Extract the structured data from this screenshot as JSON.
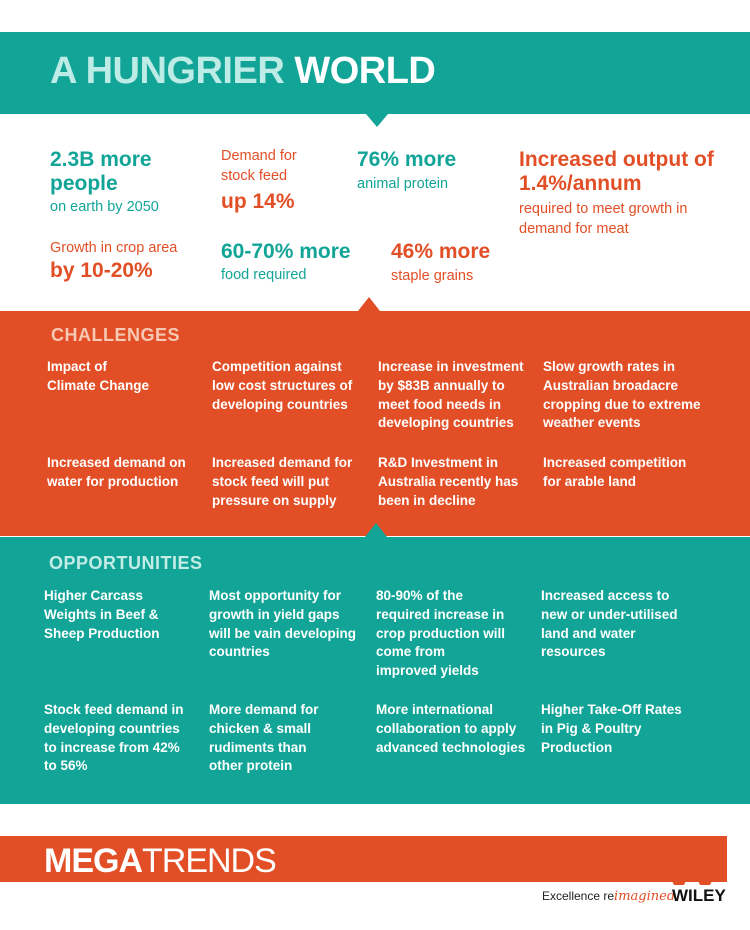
{
  "header": {
    "title_part1": "A HUNGRIER",
    "title_part2": "WORLD"
  },
  "stats": {
    "people_big": "2.3B more people",
    "people_small": "on earth by 2050",
    "stock_small": "Demand for stock feed",
    "stock_big": "up 14%",
    "protein_big": "76% more",
    "protein_small": "animal protein",
    "output_big": "Increased output of 1.4%/annum",
    "output_small": "required to meet growth in demand for meat",
    "crop_small": "Growth in crop area",
    "crop_big": "by 10-20%",
    "food_big": "60-70% more",
    "food_small": "food required",
    "grains_big": "46% more",
    "grains_small": "staple grains"
  },
  "challenges": {
    "title": "CHALLENGES",
    "items": [
      "Impact of Climate Change",
      "Competition against low cost structures of developing countries",
      "Increase in investment by $83B annually to meet food needs in developing countries",
      "Slow growth rates in Australian broadacre cropping due to extreme weather events",
      "Increased demand on water for production",
      "Increased demand for stock feed will put pressure on supply",
      "R&D Investment in Australia recently has been in decline",
      "Increased competition for arable land"
    ]
  },
  "opportunities": {
    "title": "OPPORTUNITIES",
    "items": [
      "Higher Carcass Weights in Beef & Sheep Production",
      "Most opportunity for growth in yield gaps will be vain developing countries",
      "80-90% of the required increase in crop production will come from improved yields",
      "Increased access to new or under-utilised land and water resources",
      "Stock feed demand in developing countries to increase from 42% to 56%",
      "More demand for chicken & small rudiments than other protein",
      "More international collaboration to apply advanced technologies",
      "Higher Take-Off Rates in Pig & Poultry Production"
    ]
  },
  "footer": {
    "mega_bold": "MEGA",
    "mega_light": "TRENDS",
    "excellence": "Excellence re",
    "imagined": "imagined",
    "brand": "WILEY"
  },
  "colors": {
    "teal": "#12a597",
    "orange": "#e24f26"
  }
}
